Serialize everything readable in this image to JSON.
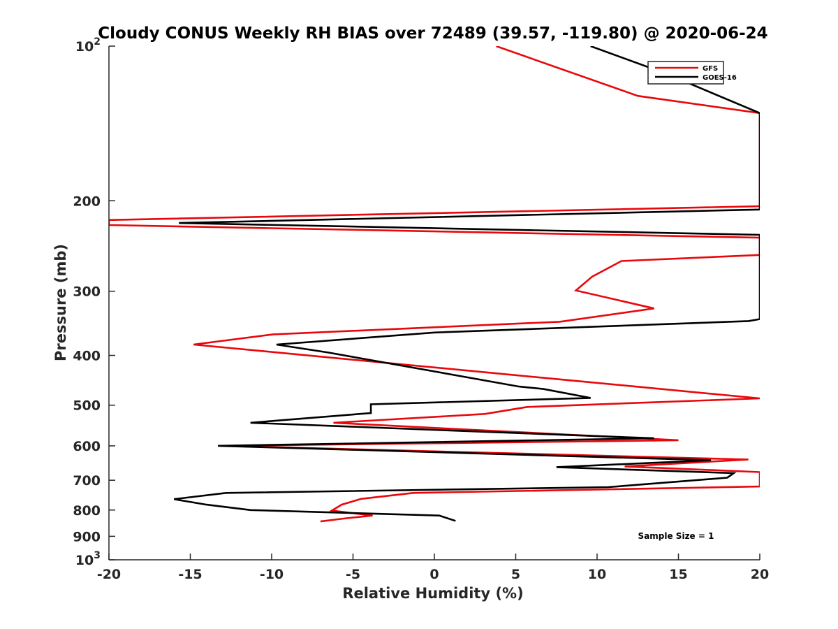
{
  "chart_data": {
    "type": "line",
    "title": "Cloudy CONUS Weekly RH BIAS over 72489 (39.57, -119.80) @ 2020-06-24",
    "xlabel": "Relative Humidity (%)",
    "ylabel": "Pressure (mb)",
    "xlim": [
      -20,
      20
    ],
    "ylim": [
      100,
      1000
    ],
    "yscale": "log",
    "yreverse": true,
    "grid": false,
    "legend_position": "top-right",
    "annotation": "Sample Size = 1",
    "x_ticks": [
      "-20",
      "-15",
      "-10",
      "-5",
      "0",
      "5",
      "10",
      "15",
      "20"
    ],
    "y_ticks": [
      {
        "value": 100,
        "base": "10",
        "exp": "2"
      },
      {
        "value": 200,
        "label": "200"
      },
      {
        "value": 300,
        "label": "300"
      },
      {
        "value": 400,
        "label": "400"
      },
      {
        "value": 500,
        "label": "500"
      },
      {
        "value": 600,
        "label": "600"
      },
      {
        "value": 700,
        "label": "700"
      },
      {
        "value": 800,
        "label": "800"
      },
      {
        "value": 900,
        "label": "900"
      },
      {
        "value": 1000,
        "base": "10",
        "exp": "3"
      }
    ],
    "series": [
      {
        "name": "GFS",
        "color": "#e8080c",
        "points": [
          [
            3.8,
            100
          ],
          [
            12.5,
            125
          ],
          [
            20,
            135
          ],
          [
            20,
            205
          ],
          [
            -20,
            218
          ],
          [
            -20,
            223
          ],
          [
            20,
            236
          ],
          [
            20,
            255
          ],
          [
            11.5,
            262
          ],
          [
            9.7,
            281
          ],
          [
            8.7,
            299
          ],
          [
            13.5,
            324
          ],
          [
            7.7,
            344
          ],
          [
            -9.9,
            364
          ],
          [
            -14.8,
            381
          ],
          [
            20,
            485
          ],
          [
            5.7,
            504
          ],
          [
            3.1,
            520
          ],
          [
            -6.2,
            541
          ],
          [
            15,
            585
          ],
          [
            -13,
            600
          ],
          [
            19.3,
            638
          ],
          [
            11.7,
            658
          ],
          [
            20,
            675
          ],
          [
            20,
            720
          ],
          [
            -1.3,
            741
          ],
          [
            -4.5,
            761
          ],
          [
            -5.7,
            781
          ],
          [
            -6.3,
            802
          ],
          [
            -3.8,
            820
          ],
          [
            -5.4,
            830
          ],
          [
            -7,
            842
          ]
        ]
      },
      {
        "name": "GOES-16",
        "color": "#000000",
        "points": [
          [
            9.6,
            100
          ],
          [
            14.2,
            113
          ],
          [
            20,
            135
          ],
          [
            20,
            208
          ],
          [
            -15.7,
            221
          ],
          [
            20,
            233
          ],
          [
            20,
            340
          ],
          [
            19.3,
            343
          ],
          [
            0,
            361
          ],
          [
            -9.7,
            381
          ],
          [
            -6.5,
            395
          ],
          [
            5.2,
            460
          ],
          [
            6.7,
            465
          ],
          [
            9.6,
            484
          ],
          [
            -3.9,
            498
          ],
          [
            -3.9,
            518
          ],
          [
            -11.3,
            541
          ],
          [
            13.5,
            580
          ],
          [
            -13.3,
            600
          ],
          [
            17,
            640
          ],
          [
            7.5,
            660
          ],
          [
            18.4,
            678
          ],
          [
            18,
            692
          ],
          [
            10.7,
            722
          ],
          [
            -12.8,
            741
          ],
          [
            -16,
            762
          ],
          [
            -14,
            781
          ],
          [
            -11.3,
            800
          ],
          [
            0.3,
            820
          ],
          [
            1.3,
            840
          ]
        ]
      }
    ]
  }
}
